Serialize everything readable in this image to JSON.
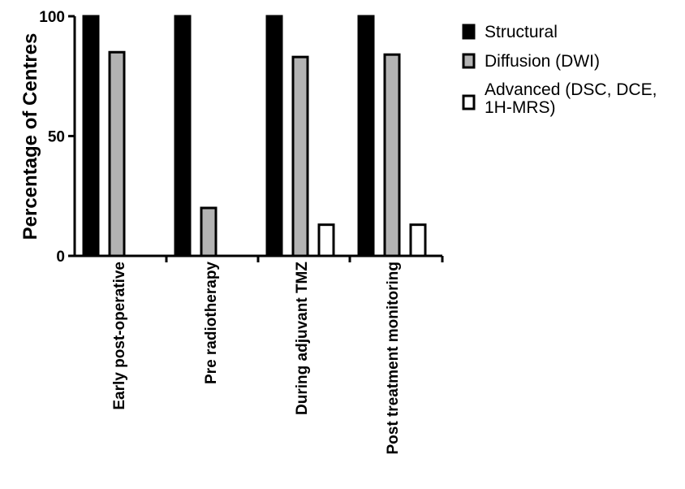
{
  "chart_data": {
    "type": "bar",
    "ylabel": "Percentage of Centres",
    "xlabel": "",
    "ylim": [
      0,
      100
    ],
    "yticks": [
      0,
      50,
      100
    ],
    "categories": [
      "Early post-operative",
      "Pre radiotherapy",
      "During adjuvant TMZ",
      "Post treatment monitoring"
    ],
    "series": [
      {
        "name": "Structural",
        "values": [
          100,
          100,
          100,
          100
        ],
        "fill": "#000000"
      },
      {
        "name": "Diffusion (DWI)",
        "values": [
          85,
          20,
          83,
          84
        ],
        "fill": "#b3b3b3"
      },
      {
        "name": "Advanced (DSC, DCE, 1H-MRS)",
        "values": [
          0,
          0,
          13,
          13
        ],
        "fill": "#ffffff"
      }
    ],
    "legend": {
      "placement": "top-right",
      "entries": [
        {
          "lines": [
            "Structural"
          ]
        },
        {
          "lines": [
            "Diffusion (DWI)"
          ]
        },
        {
          "lines": [
            "Advanced (DSC, DCE,",
            "1H-MRS)"
          ]
        }
      ]
    },
    "grid": false
  }
}
